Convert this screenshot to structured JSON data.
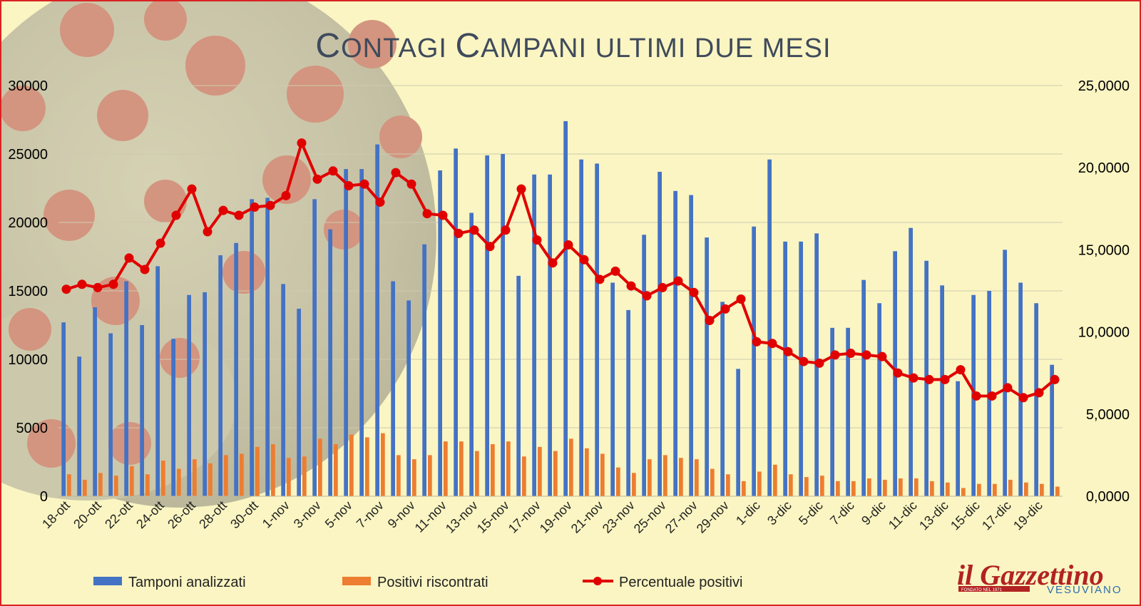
{
  "chart_data": {
    "type": "bar",
    "title": "CONTAGI CAMPANI ULTIMI DUE MESI",
    "title_parts": {
      "c1": "C",
      "r1": "ONTAGI ",
      "c2": "C",
      "r2": "AMPANI ULTIMI DUE MESI"
    },
    "categories": [
      "18-ott",
      "19-ott",
      "20-ott",
      "21-ott",
      "22-ott",
      "23-ott",
      "24-ott",
      "25-ott",
      "26-ott",
      "27-ott",
      "28-ott",
      "29-ott",
      "30-ott",
      "31-ott",
      "1-nov",
      "2-nov",
      "3-nov",
      "4-nov",
      "5-nov",
      "6-nov",
      "7-nov",
      "8-nov",
      "9-nov",
      "10-nov",
      "11-nov",
      "12-nov",
      "13-nov",
      "14-nov",
      "15-nov",
      "16-nov",
      "17-nov",
      "18-nov",
      "19-nov",
      "20-nov",
      "21-nov",
      "22-nov",
      "23-nov",
      "24-nov",
      "25-nov",
      "26-nov",
      "27-nov",
      "28-nov",
      "29-nov",
      "30-nov",
      "1-dic",
      "2-dic",
      "3-dic",
      "4-dic",
      "5-dic",
      "6-dic",
      "7-dic",
      "8-dic",
      "9-dic",
      "10-dic",
      "11-dic",
      "12-dic",
      "13-dic",
      "14-dic",
      "15-dic",
      "16-dic",
      "17-dic",
      "18-dic",
      "19-dic",
      "20-dic"
    ],
    "x_tick_labels": [
      "18-ott",
      "20-ott",
      "22-ott",
      "24-ott",
      "26-ott",
      "28-ott",
      "30-ott",
      "1-nov",
      "3-nov",
      "5-nov",
      "7-nov",
      "9-nov",
      "11-nov",
      "13-nov",
      "15-nov",
      "17-nov",
      "19-nov",
      "21-nov",
      "23-nov",
      "25-nov",
      "27-nov",
      "29-nov",
      "1-dic",
      "3-dic",
      "5-dic",
      "7-dic",
      "9-dic",
      "11-dic",
      "13-dic",
      "15-dic",
      "17-dic",
      "19-dic"
    ],
    "series": [
      {
        "name": "Tamponi analizzati",
        "axis": "left",
        "color": "#4472c4",
        "values": [
          12700,
          10200,
          13800,
          11900,
          15700,
          12500,
          16800,
          11500,
          14700,
          14900,
          17600,
          18500,
          21700,
          21800,
          15500,
          13700,
          21700,
          19500,
          23900,
          23900,
          25700,
          15700,
          14300,
          18400,
          23800,
          25400,
          20700,
          24900,
          25000,
          16100,
          23500,
          23500,
          27400,
          24600,
          24300,
          15600,
          13600,
          19100,
          23700,
          22300,
          22000,
          18900,
          14200,
          9300,
          19700,
          24600,
          18600,
          18600,
          19200,
          12300,
          12300,
          15800,
          14100,
          17900,
          19600,
          17200,
          15400,
          8400,
          14700,
          15000,
          18000,
          15600,
          14100,
          9600
        ]
      },
      {
        "name": "Positivi riscontrati",
        "axis": "left",
        "color": "#ed7d31",
        "values": [
          1600,
          1200,
          1700,
          1500,
          2200,
          1600,
          2600,
          2000,
          2700,
          2400,
          3000,
          3100,
          3600,
          3800,
          2800,
          2900,
          4200,
          3800,
          4500,
          4300,
          4600,
          3000,
          2700,
          3000,
          4000,
          4000,
          3300,
          3800,
          4000,
          2900,
          3600,
          3300,
          4200,
          3500,
          3100,
          2100,
          1700,
          2700,
          3000,
          2800,
          2700,
          2000,
          1600,
          1100,
          1800,
          2300,
          1600,
          1400,
          1500,
          1100,
          1100,
          1300,
          1200,
          1300,
          1300,
          1100,
          1000,
          600,
          900,
          900,
          1200,
          1000,
          900,
          700
        ]
      },
      {
        "name": "Percentuale positivi",
        "axis": "right",
        "color": "#e00000",
        "values": [
          12.6,
          12.9,
          12.7,
          12.9,
          14.5,
          13.8,
          15.4,
          17.1,
          18.7,
          16.1,
          17.4,
          17.1,
          17.6,
          17.7,
          18.3,
          21.5,
          19.3,
          19.8,
          18.9,
          19.0,
          17.9,
          19.7,
          19.0,
          17.2,
          17.1,
          16.0,
          16.2,
          15.2,
          16.2,
          18.7,
          15.6,
          14.2,
          15.3,
          14.4,
          13.2,
          13.7,
          12.8,
          12.2,
          12.7,
          13.1,
          12.4,
          10.7,
          11.4,
          12.0,
          9.4,
          9.3,
          8.8,
          8.2,
          8.1,
          8.6,
          8.7,
          8.6,
          8.5,
          7.5,
          7.2,
          7.1,
          7.1,
          7.7,
          6.1,
          6.1,
          6.6,
          6.0,
          6.3,
          7.1
        ]
      }
    ],
    "ylim": [
      0,
      30000
    ],
    "y_ticks": [
      "0",
      "5000",
      "10000",
      "15000",
      "20000",
      "25000",
      "30000"
    ],
    "y2lim": [
      0,
      25
    ],
    "y2_ticks": [
      "0,0000",
      "5,0000",
      "10,0000",
      "15,0000",
      "20,0000",
      "25,0000"
    ],
    "grid": true,
    "legend_position": "bottom"
  },
  "logo": {
    "main": "il Gazzettino",
    "sub": "VESUVIANO",
    "small": "FONDATO NEL 1971"
  },
  "colors": {
    "background": "#faf5c2",
    "border": "#d92323",
    "bars_tamponi": "#4472c4",
    "bars_positivi": "#ed7d31",
    "line_percentuale": "#e00000"
  }
}
